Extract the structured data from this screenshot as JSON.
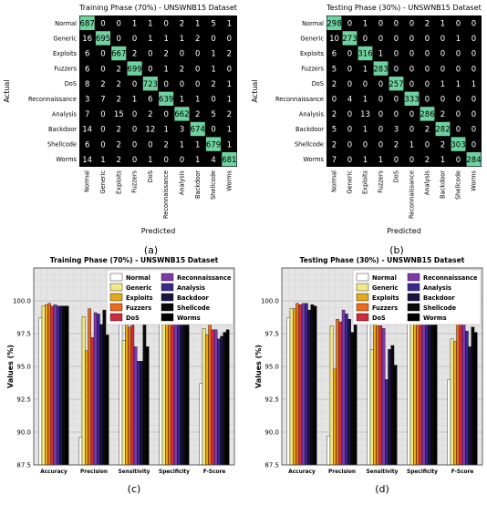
{
  "chart_data": [
    {
      "type": "heatmap",
      "panel": "(a)",
      "title": "Training Phase (70%) - UNSWNB15 Dataset",
      "xlabel": "Predicted",
      "ylabel": "Actual",
      "labels": [
        "Normal",
        "Generic",
        "Exploits",
        "Fuzzers",
        "DoS",
        "Reconnaissance",
        "Analysis",
        "Backdoor",
        "Shellcode",
        "Worms"
      ],
      "matrix": [
        [
          687,
          0,
          0,
          1,
          1,
          0,
          2,
          1,
          5,
          1
        ],
        [
          16,
          695,
          0,
          0,
          1,
          1,
          1,
          2,
          0,
          0
        ],
        [
          6,
          0,
          667,
          2,
          0,
          2,
          0,
          0,
          1,
          2
        ],
        [
          6,
          0,
          2,
          699,
          0,
          1,
          2,
          0,
          1,
          0
        ],
        [
          8,
          2,
          2,
          0,
          723,
          0,
          0,
          0,
          2,
          1
        ],
        [
          3,
          7,
          2,
          1,
          6,
          639,
          1,
          1,
          0,
          1
        ],
        [
          7,
          0,
          15,
          0,
          2,
          0,
          662,
          2,
          5,
          2
        ],
        [
          14,
          0,
          2,
          0,
          12,
          1,
          3,
          674,
          0,
          1
        ],
        [
          6,
          0,
          2,
          0,
          0,
          2,
          1,
          1,
          679,
          1
        ],
        [
          14,
          1,
          2,
          0,
          1,
          0,
          0,
          1,
          4,
          681
        ]
      ]
    },
    {
      "type": "heatmap",
      "panel": "(b)",
      "title": "Testing Phase (30%) - UNSWNB15 Dataset",
      "xlabel": "Predicted",
      "ylabel": "Actual",
      "labels": [
        "Normal",
        "Generic",
        "Exploits",
        "Fuzzers",
        "DoS",
        "Reconnaissance",
        "Analysis",
        "Backdoor",
        "Shellcode",
        "Worms"
      ],
      "matrix": [
        [
          298,
          0,
          1,
          0,
          0,
          0,
          2,
          1,
          0,
          0
        ],
        [
          10,
          273,
          0,
          0,
          0,
          0,
          0,
          0,
          1,
          0
        ],
        [
          6,
          0,
          316,
          1,
          0,
          0,
          0,
          0,
          0,
          0
        ],
        [
          5,
          0,
          1,
          283,
          0,
          0,
          0,
          0,
          0,
          0
        ],
        [
          2,
          0,
          0,
          0,
          257,
          0,
          0,
          1,
          1,
          1
        ],
        [
          0,
          4,
          1,
          0,
          0,
          333,
          0,
          0,
          0,
          0
        ],
        [
          2,
          0,
          13,
          0,
          0,
          0,
          286,
          2,
          0,
          0
        ],
        [
          5,
          0,
          1,
          0,
          3,
          0,
          2,
          282,
          0,
          0
        ],
        [
          2,
          0,
          0,
          0,
          2,
          1,
          0,
          2,
          303,
          0
        ],
        [
          7,
          0,
          1,
          1,
          0,
          0,
          2,
          1,
          0,
          284
        ]
      ]
    },
    {
      "type": "bar",
      "panel": "(c)",
      "title": "Training Phase (70%) - UNSWNB15 Dataset",
      "xlabel": "",
      "ylabel": "Values (%)",
      "ylim": [
        87.5,
        102.5
      ],
      "yticks": [
        "87.5",
        "90.0",
        "92.5",
        "95.0",
        "97.5",
        "100.0"
      ],
      "categories": [
        "Accuracy",
        "Precision",
        "Sensitivity",
        "Specificity",
        "F-Score"
      ],
      "legend_placement": "top",
      "series": [
        {
          "name": "Normal",
          "color": "#ffffff",
          "values": [
            98.7,
            89.6,
            98.4,
            98.7,
            93.7
          ]
        },
        {
          "name": "Generic",
          "color": "#f2e88a",
          "values": [
            99.6,
            98.8,
            97.0,
            99.8,
            97.9
          ]
        },
        {
          "name": "Exploits",
          "color": "#e3a81c",
          "values": [
            99.7,
            96.2,
            98.2,
            99.6,
            97.4
          ]
        },
        {
          "name": "Fuzzers",
          "color": "#ee6a1c",
          "values": [
            99.8,
            99.4,
            98.0,
            99.9,
            98.8
          ]
        },
        {
          "name": "DoS",
          "color": "#cc2b40",
          "values": [
            99.6,
            97.2,
            98.3,
            99.6,
            97.8
          ]
        },
        {
          "name": "Reconnaissance",
          "color": "#7d3aa6",
          "values": [
            99.7,
            99.1,
            96.5,
            99.8,
            97.8
          ]
        },
        {
          "name": "Analysis",
          "color": "#3b2a8e",
          "values": [
            99.6,
            99.0,
            95.4,
            99.9,
            97.1
          ]
        },
        {
          "name": "Backdoor",
          "color": "#1a1440",
          "values": [
            99.6,
            98.2,
            95.4,
            99.8,
            97.3
          ]
        },
        {
          "name": "Shellcode",
          "color": "#0a0a0a",
          "values": [
            99.6,
            99.3,
            98.4,
            99.9,
            97.6
          ]
        },
        {
          "name": "Worms",
          "color": "#000000",
          "values": [
            99.6,
            97.4,
            96.5,
            99.9,
            97.8
          ]
        }
      ]
    },
    {
      "type": "bar",
      "panel": "(d)",
      "title": "Testing Phase (30%) - UNSWNB15 Dataset",
      "xlabel": "",
      "ylabel": "Values (%)",
      "ylim": [
        87.5,
        102.5
      ],
      "yticks": [
        "87.5",
        "90.0",
        "92.5",
        "95.0",
        "97.5",
        "100.0"
      ],
      "categories": [
        "Accuracy",
        "Precision",
        "Sensitivity",
        "Specificity",
        "F-Score"
      ],
      "legend_placement": "top",
      "series": [
        {
          "name": "Normal",
          "color": "#ffffff",
          "values": [
            98.7,
            89.7,
            98.7,
            98.7,
            94.0
          ]
        },
        {
          "name": "Generic",
          "color": "#f2e88a",
          "values": [
            99.4,
            98.1,
            96.3,
            99.8,
            97.1
          ]
        },
        {
          "name": "Exploits",
          "color": "#e3a81c",
          "values": [
            99.4,
            94.8,
            98.7,
            99.7,
            96.9
          ]
        },
        {
          "name": "Fuzzers",
          "color": "#ee6a1c",
          "values": [
            99.8,
            98.6,
            98.1,
            99.9,
            98.2
          ]
        },
        {
          "name": "DoS",
          "color": "#cc2b40",
          "values": [
            99.7,
            98.4,
            98.1,
            99.9,
            98.3
          ]
        },
        {
          "name": "Reconnaissance",
          "color": "#7d3aa6",
          "values": [
            99.8,
            99.3,
            97.9,
            99.9,
            99.0
          ]
        },
        {
          "name": "Analysis",
          "color": "#3b2a8e",
          "values": [
            99.8,
            99.0,
            94.0,
            99.9,
            97.7
          ]
        },
        {
          "name": "Backdoor",
          "color": "#1a1440",
          "values": [
            99.3,
            98.6,
            96.3,
            99.8,
            96.5
          ]
        },
        {
          "name": "Shellcode",
          "color": "#0a0a0a",
          "values": [
            99.7,
            97.6,
            96.6,
            99.9,
            98.0
          ]
        },
        {
          "name": "Worms",
          "color": "#000000",
          "values": [
            99.6,
            99.2,
            95.1,
            99.9,
            97.6
          ]
        }
      ]
    }
  ],
  "colors": {
    "highlight": "#6fd3a0",
    "cell": "#000000",
    "cell_text_dark": "#ffffff",
    "cell_text_light": "#000000",
    "grid": "#c8c8c8",
    "plot_bg": "#e5e5e5"
  }
}
